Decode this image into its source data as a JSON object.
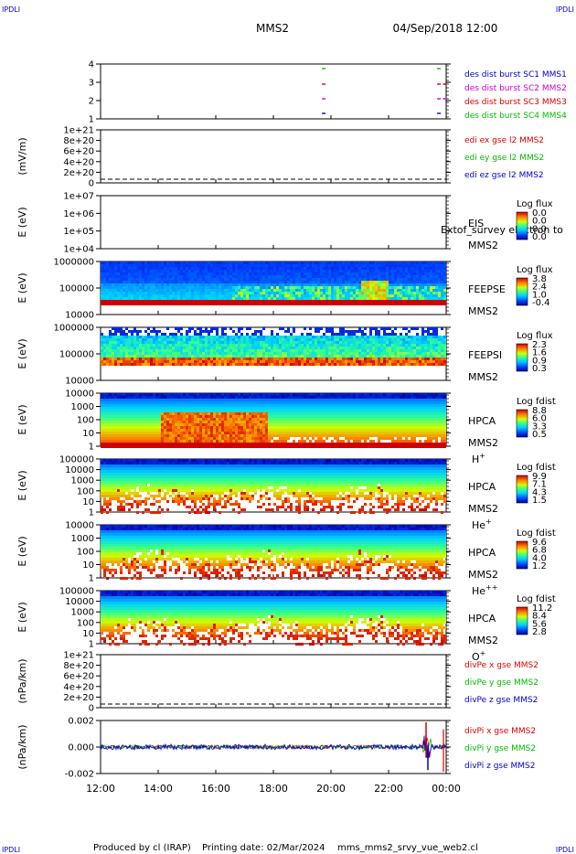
{
  "header": {
    "corner_left": "IPDLI",
    "corner_right": "IPDLI",
    "corner_bottom_left": "IPDLI",
    "corner_bottom_right": "IPDLI",
    "spacecraft": "MMS2",
    "datetime": "04/Sep/2018 12:00"
  },
  "footer": {
    "produced_by": "Produced by cl (IRAP)",
    "printing_date": "Printing date: 02/Mar/2024",
    "script_name": "mms_mms2_srvy_vue_web2.cl"
  },
  "colors": {
    "c1": "#000000",
    "c2": "#cc00cc",
    "c3": "#dd0000",
    "c4": "#00bb00",
    "red": "#dd0000",
    "green": "#00bb00",
    "blue": "#0000cc"
  },
  "chart_data": [
    {
      "id": "burst",
      "type": "scatter",
      "ylabel": "",
      "yticks": [
        "4",
        "3",
        "2",
        "1"
      ],
      "legend": [
        "des dist burst SC1 MMS1",
        "des dist burst SC2 MMS2",
        "des dist burst SC3 MMS3",
        "des dist burst SC4 MMS4"
      ],
      "legend_colors": [
        "#0000cc",
        "#cc00cc",
        "#dd0000",
        "#00bb00"
      ],
      "series": [
        {
          "level": 4,
          "color": "#00bb00",
          "x": [
            19.75,
            23.75
          ]
        },
        {
          "level": 3,
          "color": "#dd0000",
          "x": [
            19.75,
            23.75,
            23.95
          ]
        },
        {
          "level": 2,
          "color": "#cc00cc",
          "x": [
            19.75,
            23.75,
            23.95
          ]
        },
        {
          "level": 1,
          "color": "#0000cc",
          "x": [
            19.75,
            23.75
          ]
        }
      ]
    },
    {
      "id": "edi",
      "type": "line",
      "ylabel": "(mV/m)",
      "yticks": [
        "1e+21",
        "8e+20",
        "6e+20",
        "4e+20",
        "2e+20",
        "0"
      ],
      "legend": [
        "edi ex gse l2 MMS2",
        "edi ey gse l2 MMS2",
        "edi ez gse l2 MMS2"
      ],
      "legend_colors": [
        "#dd0000",
        "#00bb00",
        "#0000cc"
      ]
    },
    {
      "id": "eis",
      "type": "heatmap",
      "ylabel": "E (eV)",
      "yticks": [
        "1e+07",
        "1e+06",
        "1e+05",
        "1e+04"
      ],
      "inst": "EIS",
      "inst_sub": "MMS2",
      "inst_extra": "Extof_survey electron to",
      "cb_title": "Log flux",
      "cb_ticks": [
        "0.0",
        "0.0",
        "0.0",
        "0.0"
      ]
    },
    {
      "id": "feepse",
      "type": "heatmap",
      "ylabel": "E (eV)",
      "yticks": [
        "1000000",
        "100000",
        "10000"
      ],
      "inst": "FEEPSE",
      "inst_sub": "MMS2",
      "cb_title": "Log flux",
      "cb_ticks": [
        "3.8",
        "2.4",
        "1.0",
        "-0.4"
      ]
    },
    {
      "id": "feepsi",
      "type": "heatmap",
      "ylabel": "E (eV)",
      "yticks": [
        "1000000",
        "100000",
        "10000"
      ],
      "inst": "FEEPSI",
      "inst_sub": "MMS2",
      "cb_title": "Log flux",
      "cb_ticks": [
        "2.3",
        "1.6",
        "0.9",
        "0.3"
      ]
    },
    {
      "id": "hpca_h",
      "type": "heatmap",
      "ylabel": "E (eV)",
      "yticks": [
        "10000",
        "1000",
        "100",
        "10",
        "1"
      ],
      "inst": "HPCA",
      "inst_sub": "MMS2",
      "species": "H",
      "species_sup": "+",
      "cb_title": "Log fdist",
      "cb_ticks": [
        "8.8",
        "6.0",
        "3.3",
        "0.5"
      ]
    },
    {
      "id": "hpca_he",
      "type": "heatmap",
      "ylabel": "E (eV)",
      "yticks": [
        "100000",
        "10000",
        "1000",
        "100",
        "10",
        "1"
      ],
      "inst": "HPCA",
      "inst_sub": "MMS2",
      "species": "He",
      "species_sup": "+",
      "cb_title": "Log fdist",
      "cb_ticks": [
        "9.9",
        "7.1",
        "4.3",
        "1.5"
      ]
    },
    {
      "id": "hpca_hepp",
      "type": "heatmap",
      "ylabel": "E (eV)",
      "yticks": [
        "10000",
        "1000",
        "100",
        "10",
        "1"
      ],
      "inst": "HPCA",
      "inst_sub": "MMS2",
      "species": "He",
      "species_sup": "++",
      "cb_title": "Log fdist",
      "cb_ticks": [
        "9.6",
        "6.8",
        "4.0",
        "1.2"
      ]
    },
    {
      "id": "hpca_o",
      "type": "heatmap",
      "ylabel": "E (eV)",
      "yticks": [
        "100000",
        "10000",
        "1000",
        "100",
        "10",
        "1"
      ],
      "inst": "HPCA",
      "inst_sub": "MMS2",
      "species": "O",
      "species_sup": "+",
      "cb_title": "Log fdist",
      "cb_ticks": [
        "11.2",
        "8.4",
        "5.6",
        "2.8"
      ]
    },
    {
      "id": "divpe",
      "type": "line",
      "ylabel": "(nPa/km)",
      "yticks": [
        "1e+21",
        "8e+20",
        "6e+20",
        "4e+20",
        "2e+20",
        "0"
      ],
      "legend": [
        "divPe x gse MMS2",
        "divPe y gse MMS2",
        "divPe z gse MMS2"
      ],
      "legend_colors": [
        "#dd0000",
        "#00bb00",
        "#0000cc"
      ]
    },
    {
      "id": "divpi",
      "type": "line",
      "ylabel": "(nPa/km)",
      "yticks": [
        "0.002",
        "0.000",
        "-0.002"
      ],
      "ylim": [
        -0.003,
        0.003
      ],
      "legend": [
        "divPi x gse MMS2",
        "divPi y gse MMS2",
        "divPi z gse MMS2"
      ],
      "legend_colors": [
        "#dd0000",
        "#00bb00",
        "#0000cc"
      ]
    }
  ],
  "xaxis": {
    "ticks": [
      "12:00",
      "14:00",
      "16:00",
      "18:00",
      "20:00",
      "22:00",
      "00:00"
    ],
    "xlim_hours": [
      12,
      24
    ]
  }
}
